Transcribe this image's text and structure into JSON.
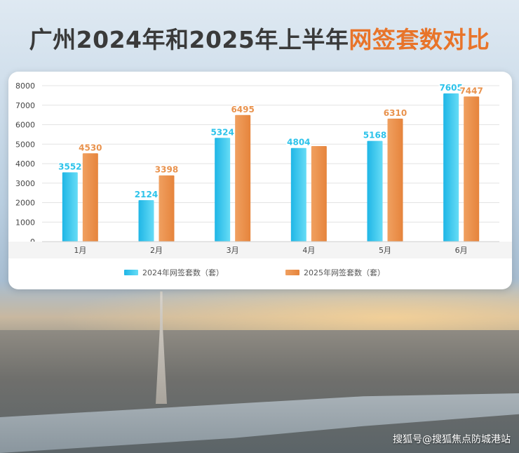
{
  "title_main": "广州2024年和2025年上半年",
  "title_highlight": "网签套数对比",
  "watermark": "搜狐号@搜狐焦点防城港站",
  "colors": {
    "series_2024": "#2ec3ea",
    "series_2025": "#e9934e",
    "title_highlight": "#e8742a"
  },
  "chart_data": {
    "type": "bar",
    "categories": [
      "1月",
      "2月",
      "3月",
      "4月",
      "5月",
      "6月"
    ],
    "series": [
      {
        "name": "2024年网签套数（套）",
        "values": [
          3552,
          2124,
          5324,
          4804,
          5168,
          7605
        ],
        "labels": [
          "3552",
          "2124",
          "5324",
          "4804",
          "5168",
          "7605"
        ]
      },
      {
        "name": "2025年网签套数（套）",
        "values": [
          4530,
          3398,
          6495,
          4900,
          6310,
          7447
        ],
        "labels": [
          "4530",
          "3398",
          "6495",
          "",
          "6310",
          "7447"
        ]
      }
    ],
    "yticks": [
      0,
      1000,
      2000,
      3000,
      4000,
      5000,
      6000,
      7000,
      8000
    ],
    "ylim": [
      0,
      8000
    ],
    "grid": true,
    "legend": "bottom"
  }
}
